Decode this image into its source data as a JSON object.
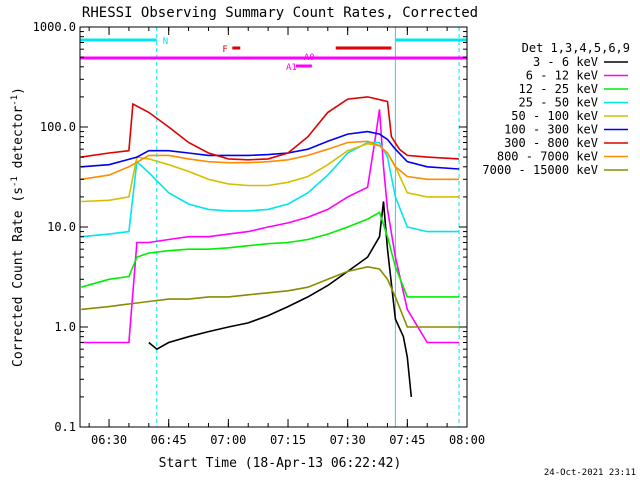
{
  "chart_data": {
    "type": "line",
    "title": "RHESSI Observing Summary Count Rates, Corrected",
    "xlabel": "Start Time (18-Apr-13 06:22:42)",
    "ylabel": "Corrected Count Rate (s⁻¹ detector⁻¹)",
    "ylabel_main": "Corrected Count Rate (s",
    "ylabel_sup1": "-1",
    "ylabel_mid": " detector",
    "ylabel_sup2": "-1",
    "ylabel_end": ")",
    "y_scale": "log",
    "ylim": [
      0.1,
      1000.0
    ],
    "xlim": [
      "06:22:42",
      "08:00:00"
    ],
    "x_ticks": [
      "06:30",
      "06:45",
      "07:00",
      "07:15",
      "07:30",
      "07:45",
      "08:00"
    ],
    "y_ticks": [
      "0.1",
      "1.0",
      "10.0",
      "100.0",
      "1000.0"
    ],
    "legend_title": "Det 1,3,4,5,6,9",
    "legend_position": "right",
    "footer_date": "24-Oct-2021 23:11",
    "flag_bars": [
      {
        "label": "N",
        "color": "#00e5ee",
        "segments": [
          [
            "06:22:42",
            "06:42:00"
          ],
          [
            "07:42:00",
            "08:00:00"
          ]
        ]
      },
      {
        "label": "F",
        "color": "#e00000",
        "segments": [
          [
            "07:01:00",
            "07:03:00"
          ],
          [
            "07:27:00",
            "07:41:00"
          ]
        ]
      },
      {
        "label": "A0",
        "color": "#ff00ff",
        "segments": [
          [
            "06:22:42",
            "08:00:00"
          ]
        ]
      },
      {
        "label": "A1",
        "color": "#ff00ff",
        "segments": [
          [
            "07:17:00",
            "07:21:00"
          ]
        ]
      }
    ],
    "vlines": [
      {
        "time": "06:42:00",
        "color": "#00e5ee",
        "style": "dashed"
      },
      {
        "time": "07:42:00",
        "color": "#00e5ee",
        "style": "solid"
      },
      {
        "time": "07:58:00",
        "color": "#00e5ee",
        "style": "dashed"
      }
    ],
    "series": [
      {
        "name": "3 - 6 keV",
        "color": "#000000",
        "x": [
          "06:40",
          "06:42",
          "06:45",
          "06:50",
          "06:55",
          "07:00",
          "07:05",
          "07:10",
          "07:15",
          "07:20",
          "07:25",
          "07:30",
          "07:35",
          "07:38",
          "07:39",
          "07:40",
          "07:42",
          "07:44",
          "07:45",
          "07:46"
        ],
        "y": [
          0.7,
          0.6,
          0.7,
          0.8,
          0.9,
          1.0,
          1.1,
          1.3,
          1.6,
          2.0,
          2.6,
          3.6,
          5.0,
          8.0,
          18.0,
          6.0,
          1.2,
          0.8,
          0.5,
          0.2
        ]
      },
      {
        "name": "6 - 12 keV",
        "color": "#ff00ff",
        "x": [
          "06:23",
          "06:30",
          "06:35",
          "06:37",
          "06:40",
          "06:45",
          "06:50",
          "06:55",
          "07:00",
          "07:05",
          "07:10",
          "07:15",
          "07:20",
          "07:25",
          "07:30",
          "07:35",
          "07:37",
          "07:38",
          "07:39",
          "07:40",
          "07:42",
          "07:45",
          "07:50",
          "07:58"
        ],
        "y": [
          0.7,
          0.7,
          0.7,
          7.0,
          7.0,
          7.5,
          8.0,
          8.0,
          8.5,
          9.0,
          10.0,
          11.0,
          12.5,
          15.0,
          20.0,
          25.0,
          80.0,
          150.0,
          40.0,
          15.0,
          5.0,
          1.5,
          0.7,
          0.7
        ]
      },
      {
        "name": "12 - 25 keV",
        "color": "#00ee00",
        "x": [
          "06:23",
          "06:30",
          "06:35",
          "06:37",
          "06:40",
          "06:45",
          "06:50",
          "06:55",
          "07:00",
          "07:05",
          "07:10",
          "07:15",
          "07:20",
          "07:25",
          "07:30",
          "07:35",
          "07:38",
          "07:40",
          "07:42",
          "07:45",
          "07:50",
          "07:58"
        ],
        "y": [
          2.5,
          3.0,
          3.2,
          5.0,
          5.5,
          5.8,
          6.0,
          6.0,
          6.2,
          6.5,
          6.8,
          7.0,
          7.5,
          8.5,
          10.0,
          12.0,
          14.0,
          8.0,
          4.0,
          2.0,
          2.0,
          2.0
        ]
      },
      {
        "name": "25 - 50 keV",
        "color": "#00e5ee",
        "x": [
          "06:23",
          "06:30",
          "06:35",
          "06:37",
          "06:40",
          "06:45",
          "06:50",
          "06:55",
          "07:00",
          "07:05",
          "07:10",
          "07:15",
          "07:20",
          "07:25",
          "07:30",
          "07:35",
          "07:38",
          "07:40",
          "07:42",
          "07:45",
          "07:50",
          "07:58"
        ],
        "y": [
          8.0,
          8.5,
          9.0,
          45.0,
          35.0,
          22.0,
          17.0,
          15.0,
          14.5,
          14.5,
          15.0,
          17.0,
          22.0,
          33.0,
          55.0,
          70.0,
          70.0,
          50.0,
          20.0,
          10.0,
          9.0,
          9.0
        ]
      },
      {
        "name": "50 - 100 keV",
        "color": "#d4c000",
        "x": [
          "06:23",
          "06:30",
          "06:35",
          "06:37",
          "06:40",
          "06:45",
          "06:50",
          "06:55",
          "07:00",
          "07:05",
          "07:10",
          "07:15",
          "07:20",
          "07:25",
          "07:30",
          "07:35",
          "07:38",
          "07:40",
          "07:42",
          "07:45",
          "07:50",
          "07:58"
        ],
        "y": [
          18.0,
          18.5,
          20.0,
          50.0,
          48.0,
          42.0,
          36.0,
          30.0,
          27.0,
          26.0,
          26.0,
          28.0,
          32.0,
          42.0,
          58.0,
          68.0,
          65.0,
          55.0,
          40.0,
          22.0,
          20.0,
          20.0
        ]
      },
      {
        "name": "100 - 300 keV",
        "color": "#0000ee",
        "x": [
          "06:23",
          "06:30",
          "06:37",
          "06:40",
          "06:45",
          "06:50",
          "06:55",
          "07:00",
          "07:05",
          "07:10",
          "07:15",
          "07:20",
          "07:25",
          "07:30",
          "07:35",
          "07:38",
          "07:40",
          "07:42",
          "07:45",
          "07:50",
          "07:58"
        ],
        "y": [
          40.0,
          42.0,
          50.0,
          58.0,
          58.0,
          55.0,
          52.0,
          52.0,
          52.0,
          53.0,
          55.0,
          60.0,
          72.0,
          85.0,
          90.0,
          85.0,
          75.0,
          60.0,
          45.0,
          40.0,
          38.0
        ]
      },
      {
        "name": "300 - 800 keV",
        "color": "#e00000",
        "x": [
          "06:23",
          "06:30",
          "06:35",
          "06:36",
          "06:40",
          "06:45",
          "06:50",
          "06:55",
          "07:00",
          "07:05",
          "07:10",
          "07:15",
          "07:20",
          "07:25",
          "07:30",
          "07:35",
          "07:40",
          "07:41",
          "07:43",
          "07:45",
          "07:50",
          "07:58"
        ],
        "y": [
          50.0,
          55.0,
          58.0,
          170.0,
          140.0,
          100.0,
          70.0,
          55.0,
          48.0,
          47.0,
          48.0,
          55.0,
          80.0,
          140.0,
          190.0,
          200.0,
          180.0,
          80.0,
          60.0,
          52.0,
          50.0,
          48.0
        ]
      },
      {
        "name": "800 - 7000 keV",
        "color": "#ff8c00",
        "x": [
          "06:23",
          "06:30",
          "06:35",
          "06:40",
          "06:45",
          "06:50",
          "06:55",
          "07:00",
          "07:05",
          "07:10",
          "07:15",
          "07:20",
          "07:25",
          "07:30",
          "07:35",
          "07:38",
          "07:40",
          "07:42",
          "07:45",
          "07:50",
          "07:58"
        ],
        "y": [
          30.0,
          33.0,
          40.0,
          52.0,
          52.0,
          48.0,
          45.0,
          44.0,
          44.0,
          45.0,
          47.0,
          52.0,
          60.0,
          70.0,
          72.0,
          65.0,
          55.0,
          40.0,
          32.0,
          30.0,
          30.0
        ]
      },
      {
        "name": "7000 - 15000 keV",
        "color": "#8b8b00",
        "x": [
          "06:23",
          "06:30",
          "06:35",
          "06:40",
          "06:45",
          "06:50",
          "06:55",
          "07:00",
          "07:05",
          "07:10",
          "07:15",
          "07:20",
          "07:25",
          "07:30",
          "07:35",
          "07:38",
          "07:40",
          "07:42",
          "07:45",
          "07:50",
          "07:58"
        ],
        "y": [
          1.5,
          1.6,
          1.7,
          1.8,
          1.9,
          1.9,
          2.0,
          2.0,
          2.1,
          2.2,
          2.3,
          2.5,
          3.0,
          3.6,
          4.0,
          3.8,
          3.0,
          2.0,
          1.0,
          1.0,
          1.0
        ]
      }
    ]
  }
}
